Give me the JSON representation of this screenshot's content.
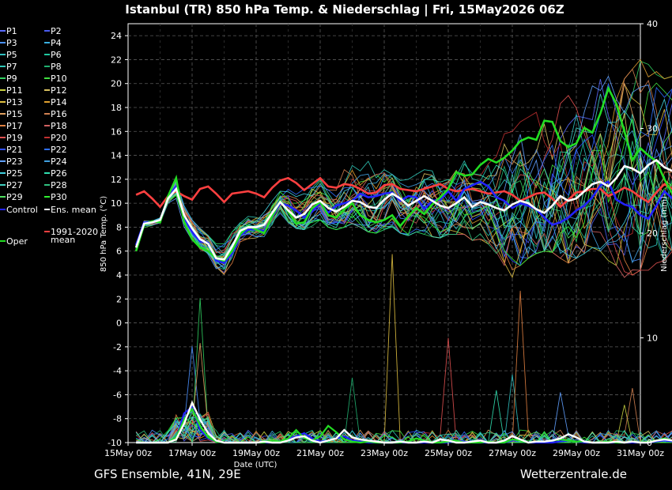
{
  "title": "Istanbul  (TR)  850 hPa Temp. & Niederschlag | Fri, 15May2026 06Z",
  "footer_left": "GFS Ensemble, 41N, 29E",
  "footer_right": "Wetterzentrale.de",
  "colors": {
    "background": "#000000",
    "control": "#2222ff",
    "ens_mean": "#ffffff",
    "climate": "#ff4040",
    "oper": "#22dd22"
  },
  "legend": {
    "items": [
      {
        "label": "P1",
        "color": "#5a6cff"
      },
      {
        "label": "P2",
        "color": "#4a5cf0"
      },
      {
        "label": "P3",
        "color": "#4a90ff"
      },
      {
        "label": "P4",
        "color": "#3ab0e0"
      },
      {
        "label": "P5",
        "color": "#30c0c0"
      },
      {
        "label": "P6",
        "color": "#20c8a0"
      },
      {
        "label": "P7",
        "color": "#30c8b8"
      },
      {
        "label": "P8",
        "color": "#20b070"
      },
      {
        "label": "P9",
        "color": "#30d060"
      },
      {
        "label": "P10",
        "color": "#40e040"
      },
      {
        "label": "P11",
        "color": "#c8d040"
      },
      {
        "label": "P12",
        "color": "#d8c060"
      },
      {
        "label": "P13",
        "color": "#e0c040"
      },
      {
        "label": "P14",
        "color": "#e0a030"
      },
      {
        "label": "P15",
        "color": "#e0a060"
      },
      {
        "label": "P16",
        "color": "#d08050"
      },
      {
        "label": "P17",
        "color": "#e08040"
      },
      {
        "label": "P18",
        "color": "#d06060"
      },
      {
        "label": "P19",
        "color": "#e05050"
      },
      {
        "label": "P20",
        "color": "#c03030"
      },
      {
        "label": "P21",
        "color": "#3050ff"
      },
      {
        "label": "P22",
        "color": "#3070ff"
      },
      {
        "label": "P23",
        "color": "#60a0ff"
      },
      {
        "label": "P24",
        "color": "#40a0e0"
      },
      {
        "label": "P25",
        "color": "#40d0e0"
      },
      {
        "label": "P26",
        "color": "#30e0b0"
      },
      {
        "label": "P27",
        "color": "#40d0c0"
      },
      {
        "label": "P28",
        "color": "#30c080"
      },
      {
        "label": "P29",
        "color": "#50e060"
      },
      {
        "label": "P30",
        "color": "#30f030"
      },
      {
        "label": "Control",
        "color": "#2222ff"
      },
      {
        "label": "Ens. mean",
        "color": "#ffffff"
      },
      {
        "label": "1991-2020",
        "label2": "mean",
        "color": "#ff4040"
      },
      {
        "label": "Oper",
        "color": "#22dd22"
      }
    ]
  },
  "chart_data": {
    "type": "line",
    "title": "Istanbul  (TR)  850 hPa Temp. & Niederschlag | Fri, 15May2026 06Z",
    "xlabel": "Date (UTC)",
    "ylabel": "850 hPa Temp. (°C)",
    "y2label": "Niederschlag (mm)",
    "x_ticks": [
      "15May 00z",
      "17May 00z",
      "19May 00z",
      "21May 00z",
      "23May 00z",
      "25May 00z",
      "27May 00z",
      "29May 00z",
      "31May 00z"
    ],
    "x_range_days": [
      0,
      16
    ],
    "x_start_day": 0.25,
    "step_hours": 6,
    "ylim": [
      -10,
      25
    ],
    "y_ticks": [
      -10,
      -8,
      -6,
      -4,
      -2,
      0,
      2,
      4,
      6,
      8,
      10,
      12,
      14,
      16,
      18,
      20,
      22,
      24
    ],
    "y2lim": [
      0,
      40
    ],
    "y2_ticks": [
      0,
      10,
      20,
      30,
      40
    ],
    "grid": true,
    "control_temp": [
      6.5,
      8.4,
      8.4,
      8.5,
      10.5,
      11.4,
      8.8,
      7.6,
      6.8,
      6.7,
      5.2,
      5.0,
      5.8,
      7.3,
      7.8,
      7.8,
      7.7,
      8.8,
      10.0,
      9.8,
      9.4,
      8.8,
      9.3,
      10.0,
      9.2,
      9.8,
      10.0,
      10.2,
      10.8,
      10.5,
      10.6,
      10.8,
      10.9,
      10.2,
      10.6,
      10.5,
      9.5,
      10.2,
      10.3,
      11.0,
      10.2,
      11.2,
      11.5,
      11.8,
      11.4,
      10.5,
      10.2,
      9.6,
      10.0,
      9.8,
      9.5,
      8.8,
      8.2,
      8.4,
      8.8,
      9.4,
      9.8,
      10.5,
      11.5,
      11.8,
      10.3,
      9.9,
      9.7,
      9.0,
      8.7,
      9.8,
      11.0,
      10.4,
      8.5
    ],
    "ens_mean_temp": [
      6.3,
      8.3,
      8.4,
      8.6,
      10.4,
      11.2,
      9.0,
      7.9,
      7.0,
      6.6,
      5.4,
      5.3,
      6.4,
      7.7,
      8.0,
      8.0,
      8.2,
      9.2,
      10.1,
      9.4,
      8.8,
      9.1,
      9.9,
      10.2,
      9.6,
      9.3,
      9.7,
      10.2,
      10.1,
      9.7,
      9.6,
      10.3,
      10.8,
      10.4,
      9.8,
      10.2,
      10.6,
      10.2,
      9.8,
      9.6,
      10.0,
      10.5,
      9.7,
      10.1,
      9.9,
      9.6,
      9.4,
      9.9,
      10.2,
      10.0,
      9.5,
      9.2,
      9.8,
      10.6,
      10.2,
      10.4,
      11.0,
      11.6,
      11.8,
      11.4,
      12.1,
      13.1,
      12.9,
      12.5,
      13.2,
      13.6,
      13.0,
      12.7,
      12.6
    ],
    "climate_mean_temp": [
      10.7,
      11.0,
      10.4,
      9.7,
      10.6,
      11.0,
      10.6,
      10.3,
      11.2,
      11.4,
      10.8,
      10.1,
      10.8,
      10.9,
      11.0,
      10.8,
      10.5,
      11.3,
      11.9,
      12.1,
      11.7,
      11.1,
      11.6,
      12.1,
      11.4,
      11.3,
      11.6,
      11.5,
      11.2,
      10.8,
      10.9,
      11.5,
      11.6,
      11.2,
      11.1,
      11.0,
      11.2,
      11.4,
      11.6,
      11.2,
      11.0,
      11.1,
      11.2,
      11.0,
      10.8,
      10.9,
      11.0,
      10.7,
      10.2,
      10.5,
      10.8,
      10.9,
      10.4,
      9.7,
      10.3,
      10.9,
      11.0,
      11.2,
      11.2,
      10.6,
      10.9,
      11.3,
      11.0,
      10.5,
      10.1,
      10.9,
      11.6,
      11.2,
      10.8
    ],
    "oper_temp": [
      6.0,
      8.2,
      8.5,
      8.4,
      10.6,
      12.1,
      8.4,
      7.0,
      6.3,
      6.0,
      5.4,
      5.2,
      6.0,
      7.4,
      8.1,
      7.8,
      7.5,
      8.9,
      10.2,
      9.3,
      8.3,
      8.4,
      9.6,
      10.1,
      9.0,
      8.8,
      9.5,
      10.0,
      9.0,
      8.6,
      8.4,
      8.6,
      9.0,
      8.1,
      8.9,
      9.6,
      9.1,
      9.9,
      10.5,
      11.2,
      12.6,
      12.3,
      12.4,
      13.2,
      13.7,
      13.4,
      13.8,
      14.4,
      15.2,
      15.5,
      15.3,
      16.9,
      16.8,
      15.2,
      14.7,
      15.0,
      16.3,
      15.9,
      17.5,
      19.6,
      18.3,
      16.0,
      13.6,
      14.6,
      14.0,
      13.5,
      12.0,
      10.8,
      9.6
    ],
    "ens_mean_precip": [
      0,
      0,
      0,
      0,
      0,
      0.3,
      1.8,
      3.8,
      2.2,
      0.9,
      0.2,
      0,
      0,
      0,
      0,
      0,
      0.1,
      0,
      0,
      0.2,
      0.5,
      0.6,
      0.2,
      0,
      0.2,
      0.4,
      1.2,
      0.5,
      0.3,
      0.2,
      0.1,
      0,
      0,
      0.1,
      0,
      0,
      0.1,
      0,
      0.3,
      0.2,
      0,
      0,
      0.1,
      0.2,
      0,
      0,
      0.2,
      0.6,
      0.3,
      0,
      0.1,
      0.1,
      0.2,
      0.4,
      0.8,
      0.5,
      0.1,
      0,
      0,
      0,
      0.1,
      0,
      0.1,
      0,
      0,
      0.2,
      0.3,
      0.2,
      0.4
    ],
    "oper_precip": [
      0,
      0,
      0,
      0,
      0,
      0.5,
      2.2,
      3.2,
      1.6,
      0.5,
      0.1,
      0,
      0,
      0,
      0,
      0,
      0,
      0.2,
      0.1,
      0.4,
      1.2,
      0.4,
      0.2,
      0.6,
      1.6,
      1.0,
      0.3,
      0.1,
      0,
      0.1,
      0,
      0,
      0,
      0,
      0.1,
      0.4,
      0.2,
      0,
      0,
      0.1,
      0.2,
      0,
      0,
      0,
      0.1,
      0,
      0,
      0.3,
      0.2,
      0,
      0.1,
      0.1,
      0.2,
      0.3,
      0.2,
      0.1,
      0.1,
      0,
      0,
      0.1,
      0,
      0,
      0.1,
      0,
      0.1,
      0.2,
      0.4,
      0.2,
      0.3
    ],
    "control_precip": [
      0,
      0,
      0,
      0,
      0,
      0.4,
      2.8,
      3.4,
      1.2,
      0.4,
      0.1,
      0,
      0,
      0,
      0,
      0,
      0,
      0,
      0,
      0.3,
      0.6,
      0.9,
      0.4,
      0.1,
      0.2,
      0.4,
      0.6,
      0.2,
      0.1,
      0,
      0,
      0,
      0,
      0,
      0,
      0,
      0,
      0,
      0,
      0,
      0.2,
      0.1,
      0,
      0,
      0,
      0,
      0,
      0.2,
      0.3,
      0,
      0,
      0,
      0,
      0.1,
      0.2,
      0.1,
      0,
      0,
      0,
      0,
      0,
      0,
      0,
      0,
      0,
      0.1,
      0.2,
      0.1,
      0
    ],
    "members_temp_band": {
      "min_approx": [
        5.6,
        7.9,
        8.0,
        8.2,
        10.0,
        10.4,
        7.4,
        6.3,
        5.4,
        4.6,
        3.8,
        3.8,
        5.0,
        6.7,
        7.0,
        7.1,
        7.0,
        7.9,
        8.6,
        8.4,
        7.9,
        7.8,
        8.1,
        8.6,
        8.0,
        7.8,
        8.0,
        8.3,
        8.0,
        7.6,
        7.5,
        7.8,
        8.0,
        7.5,
        7.3,
        7.6,
        7.4,
        7.2,
        7.1,
        7.4,
        7.4,
        7.4,
        6.9,
        7.0,
        6.6,
        5.8,
        4.8,
        3.8,
        4.8,
        5.4,
        5.8,
        6.0,
        5.9,
        5.4,
        5.0,
        5.4,
        5.8,
        6.3,
        6.0,
        5.2,
        4.8,
        3.8,
        4.0,
        4.4,
        4.4,
        5.0,
        5.2,
        6.0,
        6.5
      ],
      "max_approx": [
        6.8,
        9.1,
        8.9,
        9.0,
        11.3,
        12.8,
        9.8,
        8.8,
        7.9,
        7.3,
        6.6,
        6.6,
        7.6,
        8.6,
        8.9,
        8.9,
        9.3,
        10.2,
        11.0,
        12.9,
        12.0,
        11.2,
        11.3,
        12.0,
        11.7,
        11.2,
        12.8,
        13.7,
        12.7,
        13.5,
        12.4,
        12.8,
        12.4,
        12.5,
        12.0,
        12.4,
        12.8,
        13.0,
        12.6,
        13.0,
        12.9,
        13.8,
        13.4,
        13.6,
        13.3,
        13.9,
        15.8,
        16.0,
        16.8,
        17.2,
        17.6,
        18.8,
        19.8,
        19.7,
        19.0,
        19.4,
        19.0,
        19.8,
        20.4,
        20.6,
        20.6,
        20.4,
        21.2,
        22.0,
        21.6,
        21.0,
        20.4,
        20.6,
        20.7
      ]
    },
    "member_precip_spikes": [
      {
        "member": "P13",
        "day": 8.25,
        "mm": 18.0
      },
      {
        "member": "P17",
        "day": 12.25,
        "mm": 14.5
      },
      {
        "member": "P19",
        "day": 10.0,
        "mm": 10.0
      },
      {
        "member": "P9",
        "day": 2.25,
        "mm": 13.8
      },
      {
        "member": "P3",
        "day": 2.0,
        "mm": 9.2
      },
      {
        "member": "P15",
        "day": 2.25,
        "mm": 9.5
      },
      {
        "member": "P11",
        "day": 15.5,
        "mm": 3.6
      },
      {
        "member": "P16",
        "day": 15.75,
        "mm": 5.2
      },
      {
        "member": "P5",
        "day": 12.0,
        "mm": 6.5
      },
      {
        "member": "P8",
        "day": 7.0,
        "mm": 6.2
      },
      {
        "member": "P26",
        "day": 11.5,
        "mm": 5.0
      },
      {
        "member": "P23",
        "day": 13.5,
        "mm": 4.8
      }
    ]
  }
}
